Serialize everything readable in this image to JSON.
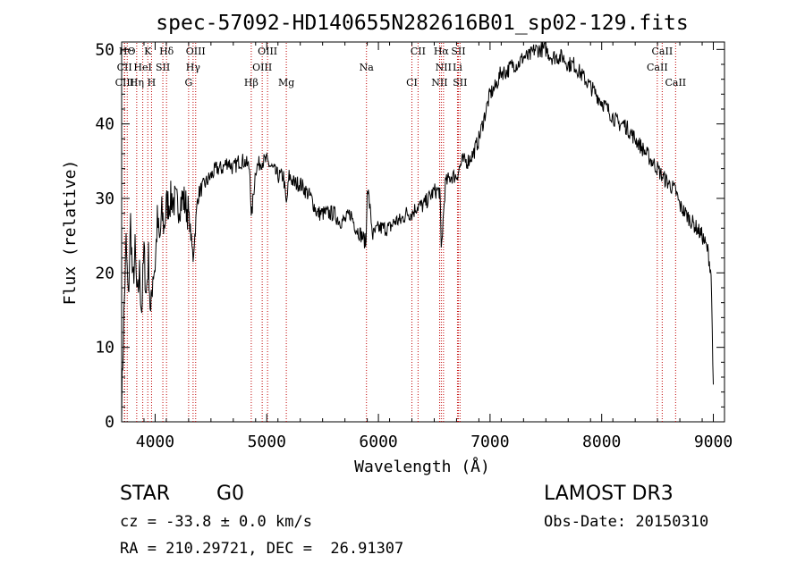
{
  "chart_data": {
    "type": "line",
    "title": "spec-57092-HD140655N282616B01_sp02-129.fits",
    "xlabel": "Wavelength (Å)",
    "ylabel": "Flux (relative)",
    "xlim": [
      3700,
      9100
    ],
    "ylim": [
      0,
      51
    ],
    "x_ticks": [
      4000,
      5000,
      6000,
      7000,
      8000,
      9000
    ],
    "y_ticks": [
      0,
      10,
      20,
      30,
      40,
      50
    ],
    "grid": false,
    "series": [
      {
        "name": "Flux",
        "x": [
          3700,
          3720,
          3740,
          3760,
          3780,
          3800,
          3820,
          3840,
          3860,
          3880,
          3900,
          3920,
          3940,
          3960,
          3980,
          4000,
          4020,
          4040,
          4060,
          4080,
          4100,
          4150,
          4200,
          4250,
          4300,
          4340,
          4380,
          4400,
          4450,
          4500,
          4550,
          4600,
          4650,
          4700,
          4750,
          4800,
          4850,
          4861,
          4900,
          4950,
          5000,
          5050,
          5100,
          5150,
          5175,
          5200,
          5250,
          5300,
          5350,
          5400,
          5450,
          5500,
          5550,
          5600,
          5650,
          5700,
          5750,
          5800,
          5850,
          5890,
          5900,
          5950,
          6000,
          6050,
          6100,
          6150,
          6200,
          6250,
          6300,
          6350,
          6400,
          6450,
          6500,
          6550,
          6563,
          6600,
          6650,
          6700,
          6750,
          6800,
          6850,
          6900,
          6950,
          7000,
          7050,
          7100,
          7150,
          7200,
          7250,
          7300,
          7350,
          7400,
          7450,
          7500,
          7550,
          7600,
          7650,
          7700,
          7750,
          7800,
          7850,
          7900,
          7950,
          8000,
          8050,
          8100,
          8150,
          8200,
          8250,
          8300,
          8350,
          8400,
          8450,
          8500,
          8542,
          8600,
          8662,
          8700,
          8750,
          8800,
          8850,
          8900,
          8950,
          8980,
          9000
        ],
        "values": [
          2,
          14,
          24,
          16,
          27,
          18,
          23,
          16,
          20,
          15,
          23,
          17,
          22,
          14,
          20,
          21,
          27,
          24,
          28,
          26,
          29,
          30,
          29,
          30,
          28,
          22,
          30,
          31,
          32,
          33,
          34,
          34,
          35,
          34,
          35,
          35,
          34,
          27,
          34,
          35,
          35,
          34,
          33,
          33,
          29,
          33,
          32,
          32,
          31,
          30,
          28,
          28,
          28,
          28,
          27,
          27,
          28,
          26,
          25,
          24,
          32,
          25,
          26,
          26,
          26,
          27,
          27,
          28,
          28,
          29,
          29,
          30,
          31,
          31,
          23,
          32,
          33,
          33,
          35,
          35,
          36,
          38,
          41,
          44,
          45,
          47,
          47,
          48,
          48,
          49,
          49,
          50,
          50,
          50,
          49,
          49,
          49,
          48,
          48,
          47,
          46,
          45,
          44,
          43,
          42,
          41,
          40,
          40,
          39,
          38,
          37,
          36,
          35,
          34,
          33,
          32,
          31,
          29,
          28,
          27,
          26,
          25,
          23,
          20,
          5
        ]
      }
    ],
    "line_markers": [
      {
        "name": "HΘ",
        "x": 3750,
        "row": 0
      },
      {
        "name": "K",
        "x": 3934,
        "row": 0
      },
      {
        "name": "Hδ",
        "x": 4102,
        "row": 0
      },
      {
        "name": "OIII",
        "x": 4363,
        "row": 0
      },
      {
        "name": "OIII",
        "x": 5007,
        "row": 0
      },
      {
        "name": "CII",
        "x": 6355,
        "row": 0
      },
      {
        "name": "Hα",
        "x": 6563,
        "row": 0
      },
      {
        "name": "SII",
        "x": 6716,
        "row": 0
      },
      {
        "name": "CaII",
        "x": 8542,
        "row": 0
      },
      {
        "name": "CII",
        "x": 3725,
        "row": 1
      },
      {
        "name": "HeI",
        "x": 3889,
        "row": 1
      },
      {
        "name": "SII",
        "x": 4069,
        "row": 1
      },
      {
        "name": "Hγ",
        "x": 4340,
        "row": 1
      },
      {
        "name": "OIII",
        "x": 4959,
        "row": 1
      },
      {
        "name": "Na",
        "x": 5893,
        "row": 1
      },
      {
        "name": "NII",
        "x": 6583,
        "row": 1
      },
      {
        "name": "Li",
        "x": 6708,
        "row": 1
      },
      {
        "name": "CaII",
        "x": 8498,
        "row": 1
      },
      {
        "name": "CIII",
        "x": 3727,
        "row": 2
      },
      {
        "name": "Hη",
        "x": 3835,
        "row": 2
      },
      {
        "name": "H",
        "x": 3968,
        "row": 2
      },
      {
        "name": "G",
        "x": 4300,
        "row": 2
      },
      {
        "name": "Hβ",
        "x": 4861,
        "row": 2
      },
      {
        "name": "Mg",
        "x": 5175,
        "row": 2
      },
      {
        "name": "CI",
        "x": 6300,
        "row": 2
      },
      {
        "name": "NII",
        "x": 6548,
        "row": 2
      },
      {
        "name": "SII",
        "x": 6731,
        "row": 2
      },
      {
        "name": "CaII",
        "x": 8662,
        "row": 2
      }
    ],
    "colors": {
      "line": "#000000",
      "marker": "#c00000"
    }
  },
  "info": {
    "object_class": "STAR",
    "subclass": "G0",
    "survey": "LAMOST DR3",
    "redshift": "cz = -33.8 ± 0.0 km/s",
    "obs_date": "Obs-Date: 20150310",
    "coords": "RA = 210.29721, DEC =  26.91307"
  }
}
